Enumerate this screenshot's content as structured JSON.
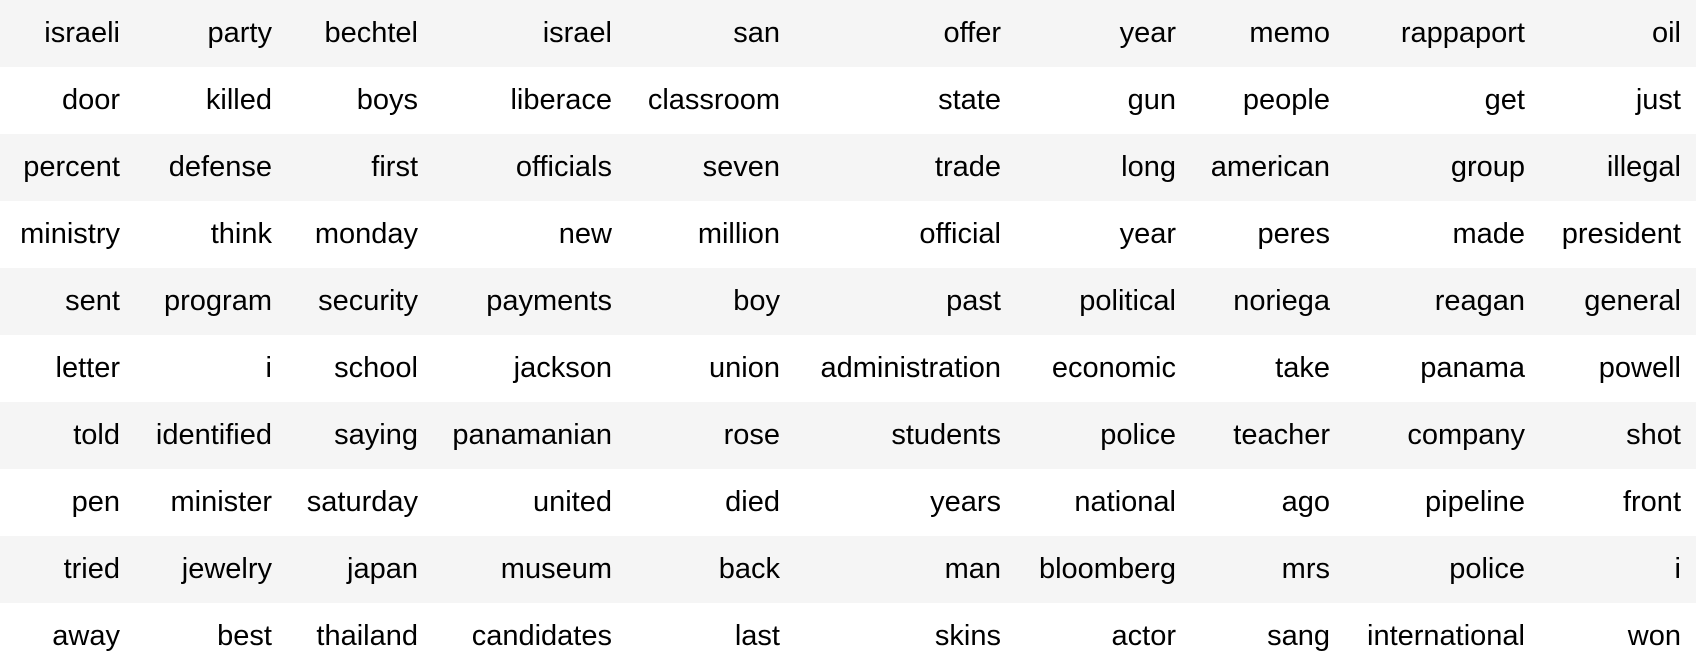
{
  "table": {
    "rows": [
      [
        "israeli",
        "party",
        "bechtel",
        "israel",
        "san",
        "offer",
        "year",
        "memo",
        "rappaport",
        "oil"
      ],
      [
        "door",
        "killed",
        "boys",
        "liberace",
        "classroom",
        "state",
        "gun",
        "people",
        "get",
        "just"
      ],
      [
        "percent",
        "defense",
        "first",
        "officials",
        "seven",
        "trade",
        "long",
        "american",
        "group",
        "illegal"
      ],
      [
        "ministry",
        "think",
        "monday",
        "new",
        "million",
        "official",
        "year",
        "peres",
        "made",
        "president"
      ],
      [
        "sent",
        "program",
        "security",
        "payments",
        "boy",
        "past",
        "political",
        "noriega",
        "reagan",
        "general"
      ],
      [
        "letter",
        "i",
        "school",
        "jackson",
        "union",
        "administration",
        "economic",
        "take",
        "panama",
        "powell"
      ],
      [
        "told",
        "identified",
        "saying",
        "panamanian",
        "rose",
        "students",
        "police",
        "teacher",
        "company",
        "shot"
      ],
      [
        "pen",
        "minister",
        "saturday",
        "united",
        "died",
        "years",
        "national",
        "ago",
        "pipeline",
        "front"
      ],
      [
        "tried",
        "jewelry",
        "japan",
        "museum",
        "back",
        "man",
        "bloomberg",
        "mrs",
        "police",
        "i"
      ],
      [
        "away",
        "best",
        "thailand",
        "candidates",
        "last",
        "skins",
        "actor",
        "sang",
        "international",
        "won"
      ]
    ]
  }
}
